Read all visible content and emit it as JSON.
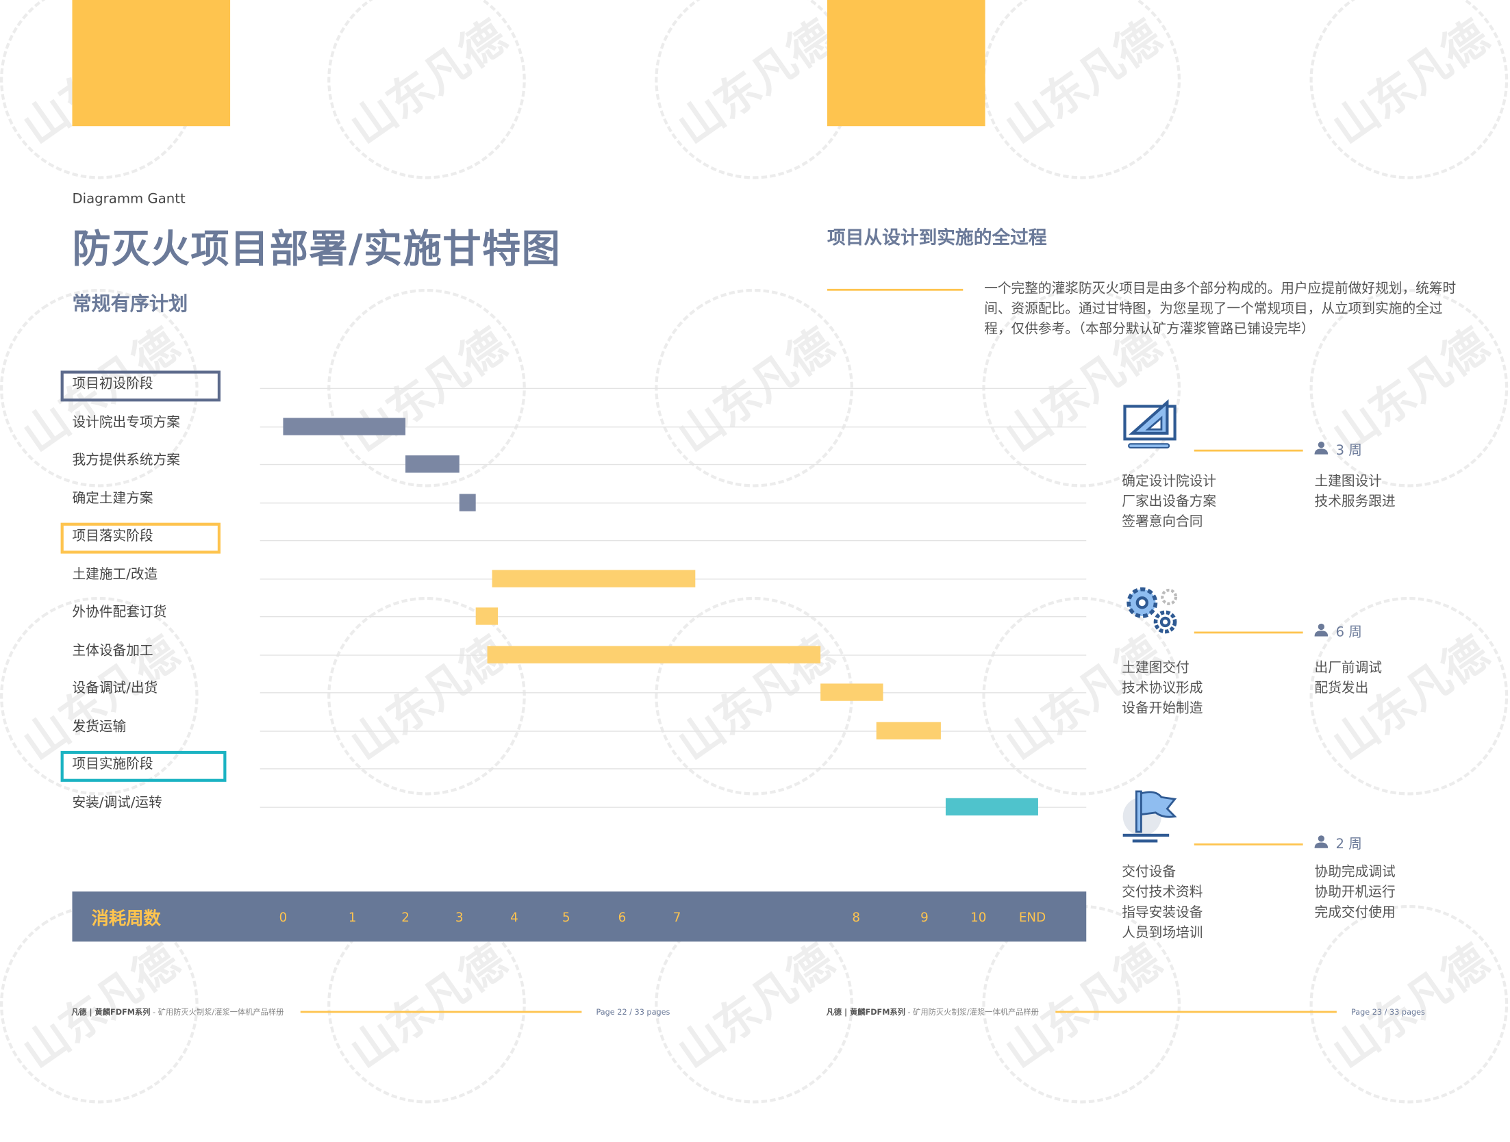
{
  "colors": {
    "accent_yellow": "#fec44f",
    "title_blue": "#6b7a99",
    "task_gray": "#7b87a3",
    "task_yellow": "#fdd06f",
    "task_teal": "#4fc3cc",
    "band": "#677897"
  },
  "watermark": "山东凡德",
  "left_page": {
    "subtitle_en": "Diagramm Gantt",
    "title": "防灭火项目部署/实施甘特图",
    "section": "常规有序计划",
    "footer": {
      "brand": "凡德 | 黄麟FDFM系列",
      "sep": " - ",
      "desc": "矿用防灭火制浆/灌浆一体机产品样册",
      "page": "Page 22 / 33 pages"
    }
  },
  "chart_data": {
    "type": "gantt",
    "xlabel": "消耗周数",
    "ticks": [
      "0",
      "1",
      "2",
      "3",
      "4",
      "5",
      "6",
      "7",
      "8",
      "9",
      "10",
      "END"
    ],
    "rows": [
      {
        "label": "项目初设阶段",
        "kind": "phase",
        "border": "#5d6b8c"
      },
      {
        "label": "设计院出专项方案",
        "kind": "task",
        "start": 0,
        "end": 2,
        "color": "#7b87a3"
      },
      {
        "label": "我方提供系统方案",
        "kind": "task",
        "start": 2,
        "end": 3,
        "color": "#7b87a3"
      },
      {
        "label": "确定土建方案",
        "kind": "task",
        "start": 3,
        "end": 3.3,
        "color": "#7b87a3"
      },
      {
        "label": "项目落实阶段",
        "kind": "phase",
        "border": "#fec44f"
      },
      {
        "label": "土建施工/改造",
        "kind": "task",
        "start": 3.6,
        "end": 7.1,
        "color": "#fdd06f"
      },
      {
        "label": "外协件配套订货",
        "kind": "task",
        "start": 3.3,
        "end": 3.7,
        "color": "#fdd06f"
      },
      {
        "label": "主体设备加工",
        "kind": "task",
        "start": 3.5,
        "end": 7.8,
        "color": "#fdd06f"
      },
      {
        "label": "设备调试/出货",
        "kind": "task",
        "start": 7.8,
        "end": 8.4,
        "color": "#fdd06f"
      },
      {
        "label": "发货运输",
        "kind": "task",
        "start": 8.3,
        "end": 9.3,
        "color": "#fdd06f"
      },
      {
        "label": "项目实施阶段",
        "kind": "phase",
        "border": "#1bb3c2"
      },
      {
        "label": "安装/调试/运转",
        "kind": "task",
        "start": 9.4,
        "end": 11.1,
        "color": "#4fc3cc"
      }
    ]
  },
  "right_page": {
    "title": "项目从设计到实施的全过程",
    "paragraph": "一个完整的灌浆防灭火项目是由多个部分构成的。用户应提前做好规划，统筹时间、资源配比。通过甘特图，为您呈现了一个常规项目，从立项到实施的全过程，仅供参考。（本部分默认矿方灌浆管路已铺设完毕）",
    "steps": [
      {
        "icon": "blueprint-ruler-icon",
        "weeks": "3 周",
        "left": "确定设计院设计\n厂家出设备方案\n签署意向合同",
        "right": "土建图设计\n技术服务跟进"
      },
      {
        "icon": "gears-icon",
        "weeks": "6 周",
        "left": "土建图交付\n技术协议形成\n设备开始制造",
        "right": "出厂前调试\n配货发出"
      },
      {
        "icon": "flag-icon",
        "weeks": "2 周",
        "left": "交付设备\n交付技术资料\n指导安装设备\n人员到场培训",
        "right": "协助完成调试\n协助开机运行\n完成交付使用"
      }
    ],
    "footer": {
      "brand": "凡德 | 黄麟FDFM系列",
      "sep": " - ",
      "desc": "矿用防灭火制浆/灌浆一体机产品样册",
      "page": "Page 23 / 33 pages"
    }
  }
}
